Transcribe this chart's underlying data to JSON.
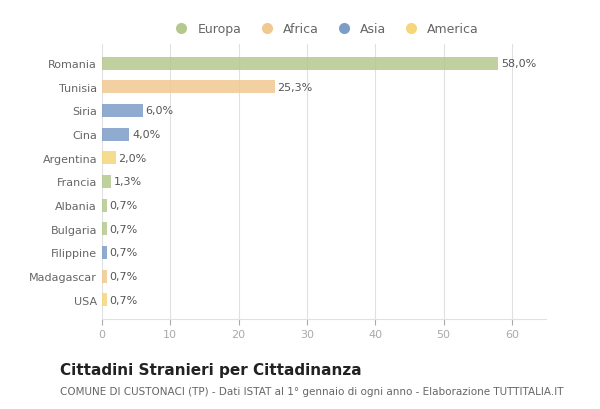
{
  "categories": [
    "Romania",
    "Tunisia",
    "Siria",
    "Cina",
    "Argentina",
    "Francia",
    "Albania",
    "Bulgaria",
    "Filippine",
    "Madagascar",
    "USA"
  ],
  "values": [
    58.0,
    25.3,
    6.0,
    4.0,
    2.0,
    1.3,
    0.7,
    0.7,
    0.7,
    0.7,
    0.7
  ],
  "labels": [
    "58,0%",
    "25,3%",
    "6,0%",
    "4,0%",
    "2,0%",
    "1,3%",
    "0,7%",
    "0,7%",
    "0,7%",
    "0,7%",
    "0,7%"
  ],
  "colors": [
    "#b5c98e",
    "#f0c891",
    "#7b9dc7",
    "#7b9dc7",
    "#f5d67a",
    "#b5c98e",
    "#b5c98e",
    "#b5c98e",
    "#7b9dc7",
    "#f0c891",
    "#f5d67a"
  ],
  "legend_labels": [
    "Europa",
    "Africa",
    "Asia",
    "America"
  ],
  "legend_colors": [
    "#b5c98e",
    "#f0c891",
    "#7b9dc7",
    "#f5d67a"
  ],
  "title": "Cittadini Stranieri per Cittadinanza",
  "subtitle": "COMUNE DI CUSTONACI (TP) - Dati ISTAT al 1° gennaio di ogni anno - Elaborazione TUTTITALIA.IT",
  "xlim": [
    0,
    65
  ],
  "xticks": [
    0,
    10,
    20,
    30,
    40,
    50,
    60
  ],
  "background_color": "#ffffff",
  "plot_bg_color": "#ffffff",
  "bar_height": 0.55,
  "grid_color": "#e0e0e0",
  "title_fontsize": 11,
  "subtitle_fontsize": 7.5,
  "label_fontsize": 8,
  "tick_fontsize": 8,
  "legend_fontsize": 9,
  "ytick_color": "#666666",
  "xtick_color": "#aaaaaa",
  "label_color": "#555555"
}
